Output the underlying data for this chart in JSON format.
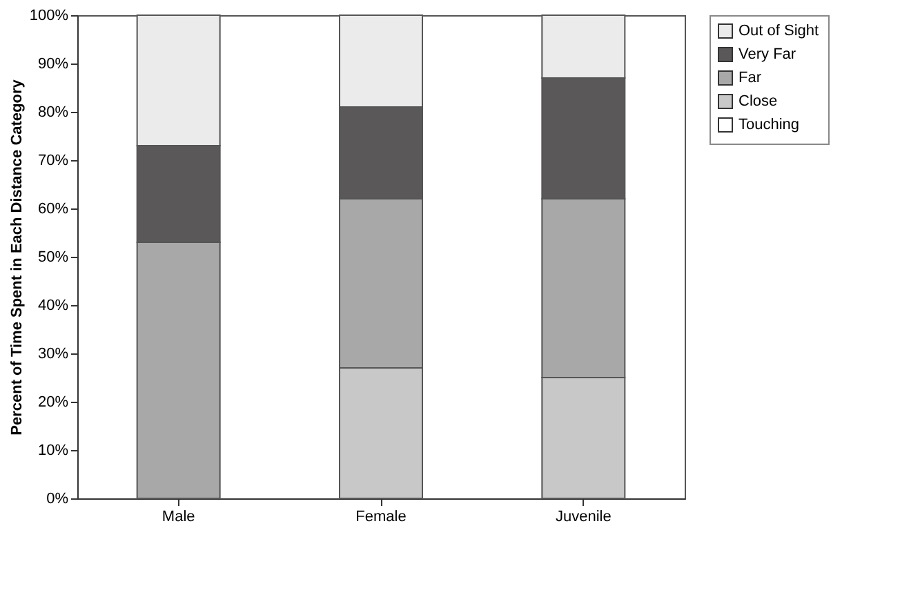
{
  "chart_data": {
    "type": "bar",
    "stacked": true,
    "ylabel": "Percent of Time Spent in Each Distance Category",
    "categories": [
      "Male",
      "Female",
      "Juvenile"
    ],
    "series": [
      {
        "name": "Touching",
        "color": "#ffffff",
        "values": [
          0,
          0,
          0
        ]
      },
      {
        "name": "Close",
        "color": "#c8c8c8",
        "values": [
          0,
          27,
          25
        ]
      },
      {
        "name": "Far",
        "color": "#a8a8a8",
        "values": [
          53,
          35,
          37
        ]
      },
      {
        "name": "Very Far",
        "color": "#5a5858",
        "values": [
          20,
          19,
          25
        ]
      },
      {
        "name": "Out of Sight",
        "color": "#ebebeb",
        "values": [
          27,
          19,
          13
        ]
      }
    ],
    "ylim": [
      0,
      100
    ],
    "yticks": [
      {
        "value": 0,
        "label": "0%"
      },
      {
        "value": 10,
        "label": "10%"
      },
      {
        "value": 20,
        "label": "20%"
      },
      {
        "value": 30,
        "label": "30%"
      },
      {
        "value": 40,
        "label": "40%"
      },
      {
        "value": 50,
        "label": "50%"
      },
      {
        "value": 60,
        "label": "60%"
      },
      {
        "value": 70,
        "label": "70%"
      },
      {
        "value": 80,
        "label": "80%"
      },
      {
        "value": 90,
        "label": "90%"
      },
      {
        "value": 100,
        "label": "100%"
      }
    ],
    "grid": false,
    "legend": "right"
  }
}
